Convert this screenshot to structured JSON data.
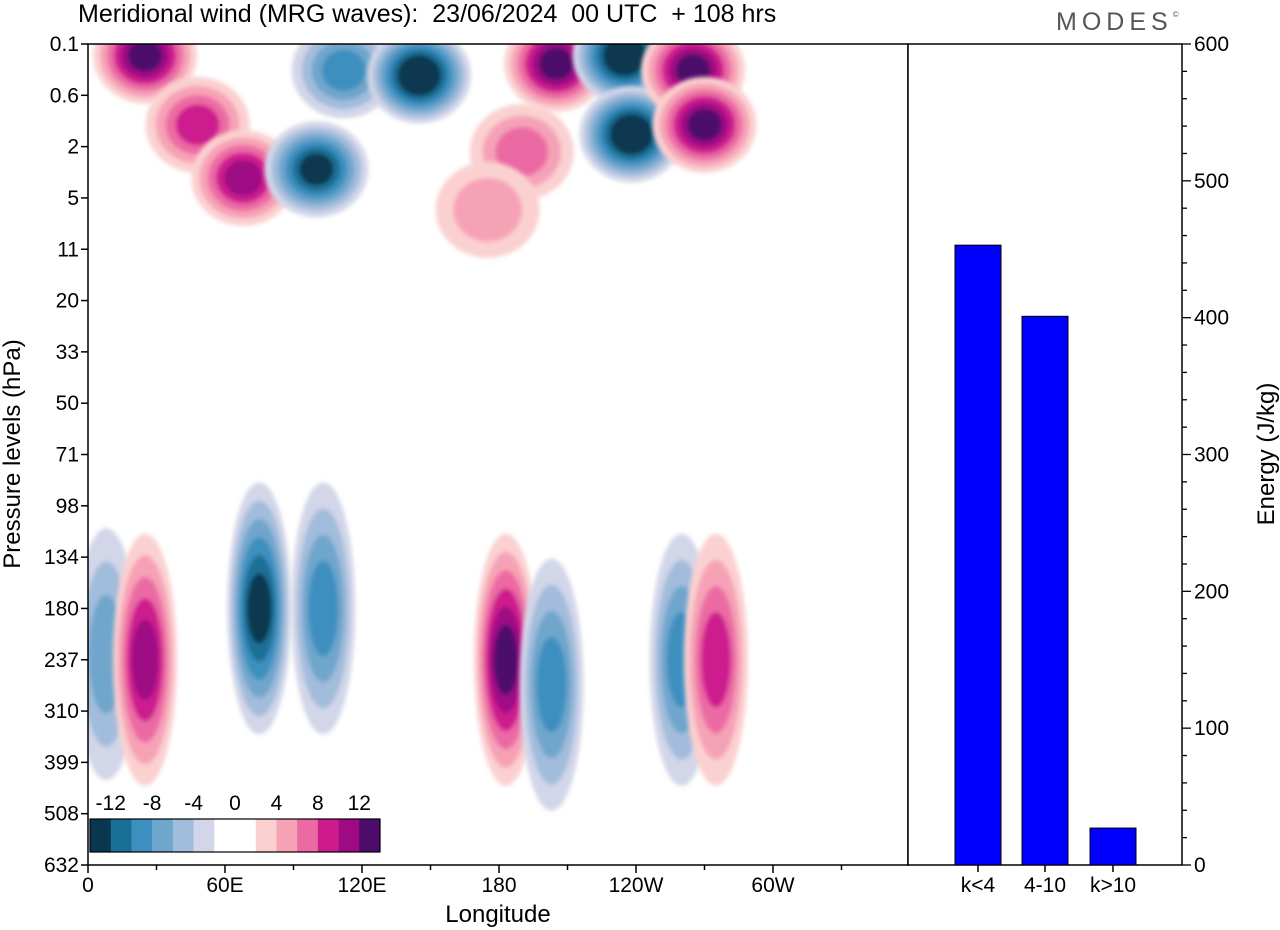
{
  "header": {
    "title": "Meridional wind (MRG waves):  23/06/2024  00 UTC  + 108 hrs",
    "logo": "MODES"
  },
  "colors": {
    "background": "#ffffff",
    "bar": "#0000ff",
    "scale": [
      "#08374f",
      "#1a6f97",
      "#3d8fc0",
      "#6fa6cc",
      "#a2bcdc",
      "#d2d6e8",
      "#ffffff",
      "#ffffff",
      "#fbd0d0",
      "#f6a2b6",
      "#ec6aa4",
      "#cd1b8e",
      "#9e0a84",
      "#4e0c6a"
    ]
  },
  "chart_data": [
    {
      "type": "heatmap",
      "title": "Meridional wind (MRG waves):  23/06/2024  00 UTC  + 108 hrs",
      "xlabel": "Longitude",
      "ylabel": "Pressure levels (hPa)",
      "x_ticks": [
        "0",
        "60E",
        "120E",
        "180",
        "120W",
        "60W"
      ],
      "y_ticks": [
        "0.1",
        "0.6",
        "2",
        "5",
        "11",
        "20",
        "33",
        "50",
        "71",
        "98",
        "134",
        "180",
        "237",
        "310",
        "399",
        "508",
        "632"
      ],
      "colorbar": {
        "labels": [
          "-12",
          "-8",
          "-4",
          "0",
          "4",
          "8",
          "12"
        ],
        "levels": [
          -14,
          -12,
          -10,
          -8,
          -6,
          -4,
          -2,
          0,
          2,
          4,
          6,
          8,
          10,
          12,
          14
        ]
      },
      "features": [
        {
          "lon": 25,
          "p": 0.15,
          "value": 11
        },
        {
          "lon": 48,
          "p": 1.2,
          "value": 8
        },
        {
          "lon": 68,
          "p": 3.5,
          "value": 10
        },
        {
          "lon": 100,
          "p": 3.0,
          "value": -12
        },
        {
          "lon": 112,
          "p": 0.25,
          "value": -7
        },
        {
          "lon": 145,
          "p": 0.3,
          "value": -14
        },
        {
          "lon": 205,
          "p": 0.2,
          "value": 11
        },
        {
          "lon": 235,
          "p": 0.15,
          "value": -14
        },
        {
          "lon": 238,
          "p": 1.5,
          "value": -14
        },
        {
          "lon": 265,
          "p": 0.25,
          "value": 12
        },
        {
          "lon": 270,
          "p": 1.2,
          "value": 11
        },
        {
          "lon": 190,
          "p": 2.2,
          "value": 5
        },
        {
          "lon": 175,
          "p": 6,
          "value": 4
        },
        {
          "lon": 8,
          "p": 230,
          "value": -5
        },
        {
          "lon": 25,
          "p": 237,
          "value": 9
        },
        {
          "lon": 75,
          "p": 180,
          "value": -12
        },
        {
          "lon": 103,
          "p": 180,
          "value": -8
        },
        {
          "lon": 183,
          "p": 237,
          "value": 12
        },
        {
          "lon": 203,
          "p": 270,
          "value": -8
        },
        {
          "lon": 260,
          "p": 237,
          "value": -7
        },
        {
          "lon": 275,
          "p": 237,
          "value": 8
        }
      ]
    },
    {
      "type": "bar",
      "categories": [
        "k<4",
        "4-10",
        "k>10"
      ],
      "values": [
        453,
        401,
        27
      ],
      "ylabel": "Energy (J/kg)",
      "ylim": [
        0,
        600
      ],
      "y_ticks": [
        0,
        100,
        200,
        300,
        400,
        500,
        600
      ]
    }
  ]
}
